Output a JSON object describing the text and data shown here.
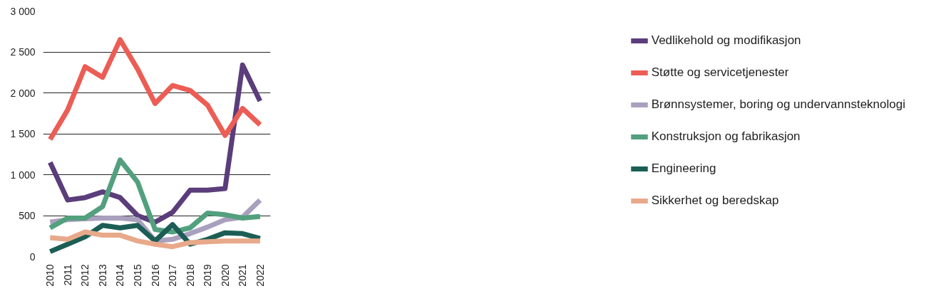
{
  "chart_data": {
    "type": "line",
    "x": [
      2010,
      2011,
      2012,
      2013,
      2014,
      2015,
      2016,
      2017,
      2018,
      2019,
      2020,
      2021,
      2022
    ],
    "xlim": [
      2009.6,
      2022.6
    ],
    "xticks": [
      2010,
      2011,
      2012,
      2013,
      2014,
      2015,
      2016,
      2017,
      2018,
      2019,
      2020,
      2021,
      2022
    ],
    "ylim": [
      0,
      3000
    ],
    "yticks": [
      {
        "value": 0,
        "label": "0"
      },
      {
        "value": 500,
        "label": "500"
      },
      {
        "value": 1000,
        "label": "1 000"
      },
      {
        "value": 1500,
        "label": "1 500"
      },
      {
        "value": 2000,
        "label": "2 000"
      },
      {
        "value": 2500,
        "label": "2 500"
      },
      {
        "value": 3000,
        "label": "3 000"
      }
    ],
    "grid": "y",
    "legend": "right",
    "line_style": "solid",
    "marker": "none",
    "series": [
      {
        "name": "Vedlikehold og modifikasjon",
        "color": "#5a3d7a",
        "values": [
          1150,
          690,
          720,
          790,
          720,
          500,
          420,
          540,
          810,
          810,
          830,
          2340,
          1900
        ]
      },
      {
        "name": "Støtte og servicetjenester",
        "color": "#ec5d55",
        "values": [
          1430,
          1790,
          2320,
          2190,
          2650,
          2290,
          1870,
          2090,
          2030,
          1850,
          1480,
          1810,
          1610
        ]
      },
      {
        "name": "Brønnsystemer, boring og undervannsteknologi",
        "color": "#a9a0be",
        "values": [
          420,
          450,
          460,
          470,
          470,
          450,
          190,
          210,
          280,
          360,
          450,
          480,
          690
        ]
      },
      {
        "name": "Konstruksjon og fabrikasjon",
        "color": "#52a07e",
        "values": [
          350,
          470,
          470,
          610,
          1180,
          910,
          330,
          300,
          350,
          530,
          510,
          470,
          490
        ]
      },
      {
        "name": "Engineering",
        "color": "#1c5e55",
        "values": [
          60,
          150,
          240,
          380,
          350,
          380,
          190,
          390,
          150,
          210,
          290,
          280,
          220
        ]
      },
      {
        "name": "Sikkerhet og beredskap",
        "color": "#e8a98a",
        "values": [
          230,
          210,
          300,
          260,
          260,
          190,
          150,
          120,
          170,
          180,
          190,
          190,
          190
        ]
      }
    ]
  }
}
